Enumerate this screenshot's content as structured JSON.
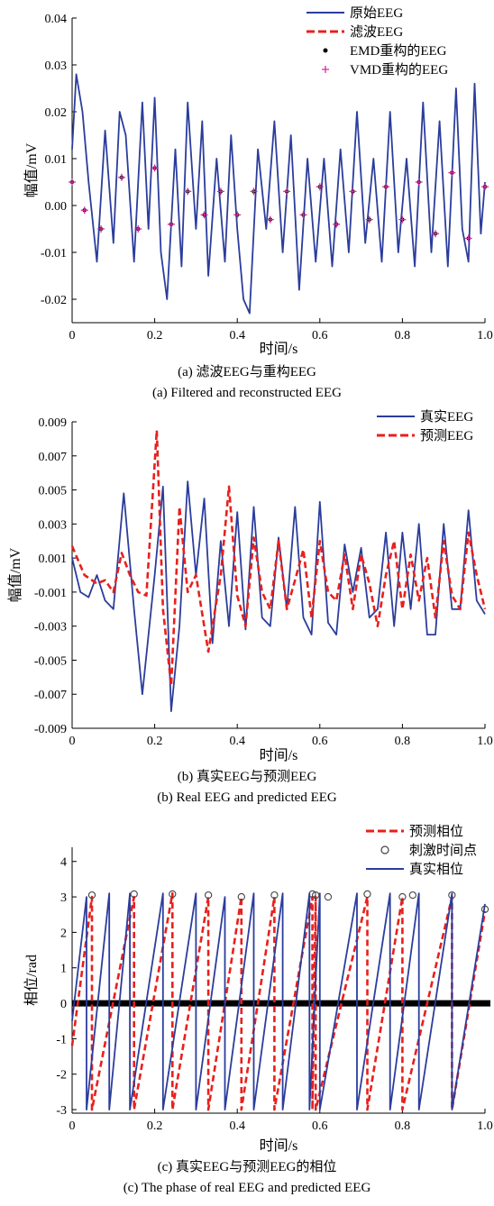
{
  "chart_data": [
    {
      "type": "line",
      "ylabel": "幅值/mV",
      "xlabel": "时间/s",
      "xlim": [
        0,
        1.0
      ],
      "ylim": [
        -0.025,
        0.04
      ],
      "xticks": [
        "0",
        "0.2",
        "0.4",
        "0.6",
        "0.8",
        "1.0"
      ],
      "yticks": [
        "-0.02",
        "-0.01",
        "0.00",
        "0.01",
        "0.02",
        "0.03",
        "0.04"
      ],
      "legend_position": "top-right",
      "series": [
        {
          "name": "原始EEG",
          "color": "#2b3d9c",
          "style": "solid",
          "x": [
            0,
            0.01,
            0.025,
            0.04,
            0.06,
            0.08,
            0.1,
            0.115,
            0.13,
            0.15,
            0.17,
            0.185,
            0.2,
            0.215,
            0.23,
            0.25,
            0.265,
            0.28,
            0.3,
            0.315,
            0.33,
            0.35,
            0.37,
            0.385,
            0.4,
            0.415,
            0.43,
            0.45,
            0.47,
            0.49,
            0.51,
            0.53,
            0.55,
            0.57,
            0.59,
            0.61,
            0.63,
            0.65,
            0.67,
            0.69,
            0.71,
            0.73,
            0.75,
            0.77,
            0.79,
            0.81,
            0.83,
            0.85,
            0.87,
            0.89,
            0.91,
            0.93,
            0.945,
            0.96,
            0.975,
            0.99,
            1.0
          ],
          "y": [
            0.012,
            0.028,
            0.02,
            0.005,
            -0.012,
            0.016,
            -0.008,
            0.02,
            0.015,
            -0.012,
            0.022,
            -0.005,
            0.023,
            -0.01,
            -0.02,
            0.012,
            -0.013,
            0.022,
            -0.005,
            0.018,
            -0.015,
            0.01,
            -0.012,
            0.015,
            -0.005,
            -0.02,
            -0.023,
            0.012,
            -0.005,
            0.018,
            -0.01,
            0.015,
            -0.018,
            0.01,
            -0.012,
            0.01,
            -0.013,
            0.012,
            -0.01,
            0.02,
            -0.008,
            0.01,
            -0.012,
            0.02,
            -0.01,
            0.01,
            -0.013,
            0.022,
            -0.01,
            0.018,
            -0.013,
            0.025,
            -0.005,
            -0.012,
            0.026,
            -0.006,
            0.005
          ]
        },
        {
          "name": "滤波EEG",
          "color": "#e8201c",
          "style": "dashed",
          "x": [],
          "y": []
        },
        {
          "name": "EMD重构的EEG",
          "color": "#000000",
          "style": "markers-dot",
          "x": [
            0,
            0.03,
            0.07,
            0.12,
            0.16,
            0.2,
            0.24,
            0.28,
            0.32,
            0.36,
            0.4,
            0.44,
            0.48,
            0.52,
            0.56,
            0.6,
            0.64,
            0.68,
            0.72,
            0.76,
            0.8,
            0.84,
            0.88,
            0.92,
            0.96,
            1.0
          ],
          "y": [
            0.005,
            -0.001,
            -0.005,
            0.006,
            -0.005,
            0.008,
            -0.004,
            0.003,
            -0.002,
            0.003,
            -0.002,
            0.003,
            -0.003,
            0.003,
            -0.002,
            0.004,
            -0.004,
            0.003,
            -0.003,
            0.004,
            -0.003,
            0.005,
            -0.006,
            0.007,
            -0.007,
            0.004
          ]
        },
        {
          "name": "VMD重构的EEG",
          "color": "#d0309a",
          "style": "markers-plus",
          "x": [
            0,
            0.03,
            0.07,
            0.12,
            0.16,
            0.2,
            0.24,
            0.28,
            0.32,
            0.36,
            0.4,
            0.44,
            0.48,
            0.52,
            0.56,
            0.6,
            0.64,
            0.68,
            0.72,
            0.76,
            0.8,
            0.84,
            0.88,
            0.92,
            0.96,
            1.0
          ],
          "y": [
            0.005,
            -0.001,
            -0.005,
            0.006,
            -0.005,
            0.008,
            -0.004,
            0.003,
            -0.002,
            0.003,
            -0.002,
            0.003,
            -0.003,
            0.003,
            -0.002,
            0.004,
            -0.004,
            0.003,
            -0.003,
            0.004,
            -0.003,
            0.005,
            -0.006,
            0.007,
            -0.007,
            0.004
          ]
        }
      ],
      "caption_cn": "(a) 滤波EEG与重构EEG",
      "caption_en": "(a) Filtered and reconstructed EEG"
    },
    {
      "type": "line",
      "ylabel": "幅值/mV",
      "xlabel": "时间/s",
      "xlim": [
        0,
        1.0
      ],
      "ylim": [
        -0.009,
        0.009
      ],
      "xticks": [
        "0",
        "0.2",
        "0.4",
        "0.6",
        "0.8",
        "1.0"
      ],
      "yticks": [
        "-0.009",
        "-0.007",
        "-0.005",
        "-0.003",
        "-0.001",
        "0.001",
        "0.003",
        "0.005",
        "0.007",
        "0.009"
      ],
      "legend_position": "top-right",
      "series": [
        {
          "name": "真实EEG",
          "color": "#2b3d9c",
          "style": "solid",
          "x": [
            0,
            0.02,
            0.04,
            0.06,
            0.08,
            0.1,
            0.125,
            0.15,
            0.17,
            0.2,
            0.22,
            0.24,
            0.26,
            0.28,
            0.3,
            0.32,
            0.34,
            0.36,
            0.38,
            0.4,
            0.42,
            0.44,
            0.46,
            0.48,
            0.5,
            0.52,
            0.54,
            0.56,
            0.58,
            0.6,
            0.62,
            0.64,
            0.66,
            0.68,
            0.7,
            0.72,
            0.74,
            0.76,
            0.78,
            0.8,
            0.82,
            0.84,
            0.86,
            0.88,
            0.9,
            0.92,
            0.94,
            0.96,
            0.98,
            1.0
          ],
          "y": [
            0.001,
            -0.001,
            -0.0013,
            0.0,
            -0.0015,
            -0.002,
            0.0048,
            -0.002,
            -0.007,
            0.0,
            0.0052,
            -0.008,
            -0.003,
            0.0055,
            0.0,
            0.0045,
            -0.004,
            0.002,
            -0.003,
            0.0037,
            -0.0032,
            0.004,
            -0.0025,
            -0.003,
            0.0022,
            -0.002,
            0.004,
            -0.0025,
            -0.0035,
            0.0043,
            -0.0028,
            -0.0035,
            0.0018,
            -0.001,
            0.0016,
            -0.0025,
            -0.002,
            0.0025,
            -0.003,
            0.0025,
            -0.002,
            0.003,
            -0.0035,
            -0.0035,
            0.003,
            -0.002,
            -0.002,
            0.0038,
            -0.0015,
            -0.0023
          ]
        },
        {
          "name": "预测EEG",
          "color": "#e8201c",
          "style": "dashed",
          "x": [
            0,
            0.03,
            0.06,
            0.08,
            0.1,
            0.12,
            0.14,
            0.16,
            0.18,
            0.205,
            0.22,
            0.24,
            0.26,
            0.28,
            0.3,
            0.33,
            0.36,
            0.38,
            0.4,
            0.42,
            0.44,
            0.46,
            0.48,
            0.5,
            0.52,
            0.54,
            0.56,
            0.58,
            0.6,
            0.62,
            0.64,
            0.66,
            0.68,
            0.7,
            0.72,
            0.74,
            0.76,
            0.78,
            0.8,
            0.82,
            0.84,
            0.86,
            0.88,
            0.9,
            0.92,
            0.94,
            0.96,
            0.98,
            1.0
          ],
          "y": [
            0.0017,
            0.0,
            -0.0005,
            -0.0003,
            -0.001,
            0.0013,
            0.0,
            -0.001,
            -0.0012,
            0.0085,
            -0.002,
            -0.0065,
            0.004,
            -0.001,
            0.0,
            -0.0045,
            0.0,
            0.0052,
            -0.0012,
            -0.003,
            0.0022,
            -0.001,
            -0.002,
            0.002,
            -0.002,
            -0.0003,
            0.0015,
            -0.0025,
            0.002,
            -0.001,
            -0.0015,
            0.0012,
            -0.002,
            0.0012,
            -0.0005,
            -0.003,
            0.0,
            0.002,
            -0.002,
            0.0012,
            -0.0015,
            0.001,
            -0.0025,
            0.002,
            -0.0012,
            -0.002,
            0.0025,
            0.0,
            -0.002
          ]
        }
      ],
      "caption_cn": "(b) 真实EEG与预测EEG",
      "caption_en": "(b) Real EEG and predicted EEG"
    },
    {
      "type": "line",
      "ylabel": "相位/rad",
      "xlabel": "时间/s",
      "xlim": [
        0,
        1.0
      ],
      "ylim": [
        -3.1,
        4.4
      ],
      "xticks": [
        "0",
        "0.2",
        "0.4",
        "0.6",
        "0.8",
        "1.0"
      ],
      "yticks": [
        "-3",
        "-2",
        "-1",
        "0",
        "1",
        "2",
        "3",
        "4"
      ],
      "legend_position": "top-right",
      "series": [
        {
          "name": "预测相位",
          "color": "#e8201c",
          "style": "dashed",
          "x": [
            0,
            0.048,
            0.048,
            0.15,
            0.15,
            0.243,
            0.243,
            0.33,
            0.33,
            0.41,
            0.41,
            0.49,
            0.49,
            0.582,
            0.582,
            0.59,
            0.59,
            0.715,
            0.715,
            0.8,
            0.8,
            0.92,
            0.92,
            1.0
          ],
          "y": [
            -1.2,
            3.0,
            -3.0,
            3.0,
            -3.0,
            3.1,
            -3.0,
            3.0,
            -3.0,
            3.0,
            -3.0,
            3.0,
            -3.0,
            3.0,
            -3.0,
            3.0,
            -3.0,
            3.0,
            -3.0,
            3.0,
            -3.0,
            3.0,
            -3.0,
            2.6
          ]
        },
        {
          "name": "刺激时间点",
          "color": "#444444",
          "style": "markers-circle",
          "x": [
            0.048,
            0.15,
            0.243,
            0.33,
            0.41,
            0.49,
            0.582,
            0.59,
            0.62,
            0.715,
            0.8,
            0.825,
            0.92,
            1.0
          ],
          "y": [
            3.05,
            3.08,
            3.08,
            3.05,
            3.0,
            3.05,
            3.08,
            3.05,
            3.0,
            3.08,
            3.0,
            3.05,
            3.05,
            2.65
          ]
        },
        {
          "name": "真实相位",
          "color": "#2b3d9c",
          "style": "solid",
          "x": [
            0,
            0.035,
            0.035,
            0.09,
            0.09,
            0.14,
            0.14,
            0.22,
            0.22,
            0.3,
            0.3,
            0.37,
            0.37,
            0.44,
            0.44,
            0.51,
            0.51,
            0.575,
            0.575,
            0.6,
            0.6,
            0.69,
            0.69,
            0.77,
            0.77,
            0.84,
            0.84,
            0.92,
            0.92,
            1.0
          ],
          "y": [
            -0.5,
            3.0,
            -3.0,
            3.1,
            -3.0,
            3.1,
            -3.0,
            3.1,
            -3.0,
            3.1,
            -3.0,
            3.0,
            -3.0,
            3.1,
            -3.0,
            3.1,
            -3.0,
            3.1,
            -3.0,
            3.1,
            -3.0,
            3.1,
            -3.0,
            3.1,
            -3.0,
            3.1,
            -3.0,
            3.1,
            -3.0,
            2.8
          ]
        }
      ],
      "caption_cn": "(c) 真实EEG与预测EEG的相位",
      "caption_en": "(c) The phase of real EEG and predicted EEG"
    }
  ]
}
